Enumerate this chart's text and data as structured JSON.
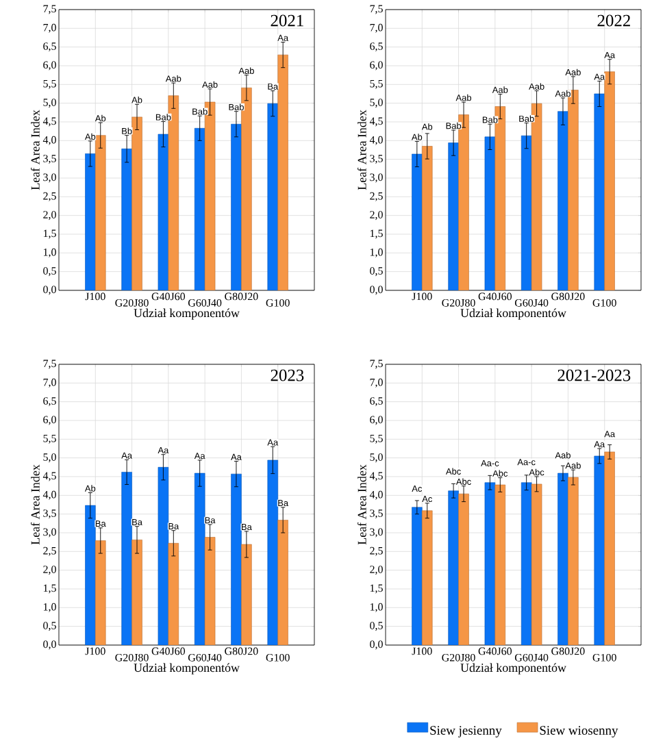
{
  "chart_data": [
    {
      "type": "bar",
      "title": "2021",
      "xlabel": "Udział komponentów",
      "ylabel": "Leaf Area Index",
      "categories": [
        "J100",
        "G20J80",
        "G40J60",
        "G60J40",
        "G80J20",
        "G100"
      ],
      "ylim": [
        0,
        7.5
      ],
      "yticks": [
        {
          "value": 0,
          "label": "0,0"
        },
        {
          "value": 0.5,
          "label": "0,5"
        },
        {
          "value": 1,
          "label": "1,0"
        },
        {
          "value": 1.5,
          "label": "1,5"
        },
        {
          "value": 2,
          "label": "2,0"
        },
        {
          "value": 2.5,
          "label": "2,5"
        },
        {
          "value": 3,
          "label": "3,0"
        },
        {
          "value": 3.5,
          "label": "3,5"
        },
        {
          "value": 4,
          "label": "4,0"
        },
        {
          "value": 4.5,
          "label": "4,5"
        },
        {
          "value": 5,
          "label": "5,0"
        },
        {
          "value": 5.5,
          "label": "5,5"
        },
        {
          "value": 6,
          "label": "6,0"
        },
        {
          "value": 6.5,
          "label": "6,5"
        },
        {
          "value": 7,
          "label": "7,0"
        },
        {
          "value": 7.5,
          "label": "7,5"
        }
      ],
      "grid": true,
      "series": [
        {
          "color": "#0a74f5",
          "values": [
            3.65,
            3.78,
            4.17,
            4.33,
            4.44,
            4.99
          ],
          "errors": [
            0.34,
            0.36,
            0.34,
            0.33,
            0.34,
            0.34
          ],
          "value_labels": [
            "Ab",
            "Bb",
            "Bab",
            "Bab",
            "Bab",
            "Ba"
          ]
        },
        {
          "color": "#f59646",
          "values": [
            4.14,
            4.63,
            5.2,
            5.03,
            5.41,
            6.29
          ],
          "errors": [
            0.34,
            0.34,
            0.34,
            0.35,
            0.34,
            0.34
          ],
          "value_labels": [
            "Ab",
            "Ab",
            "Aab",
            "Aab",
            "Aab",
            "Aa"
          ]
        }
      ]
    },
    {
      "type": "bar",
      "title": "2022",
      "xlabel": "Udział komponentów",
      "ylabel": "Leaf Area Index",
      "categories": [
        "J100",
        "G20J80",
        "G40J60",
        "G60J40",
        "G80J20",
        "G100"
      ],
      "ylim": [
        0,
        7.5
      ],
      "yticks": [
        {
          "value": 0,
          "label": "0,0"
        },
        {
          "value": 0.5,
          "label": "0,5"
        },
        {
          "value": 1,
          "label": "1,0"
        },
        {
          "value": 1.5,
          "label": "1,5"
        },
        {
          "value": 2,
          "label": "2,0"
        },
        {
          "value": 2.5,
          "label": "2,5"
        },
        {
          "value": 3,
          "label": "3,0"
        },
        {
          "value": 3.5,
          "label": "3,5"
        },
        {
          "value": 4,
          "label": "4,0"
        },
        {
          "value": 4.5,
          "label": "4,5"
        },
        {
          "value": 5,
          "label": "5,0"
        },
        {
          "value": 5.5,
          "label": "5,5"
        },
        {
          "value": 6,
          "label": "6,0"
        },
        {
          "value": 6.5,
          "label": "6,5"
        },
        {
          "value": 7,
          "label": "7,0"
        },
        {
          "value": 7.5,
          "label": "7,5"
        }
      ],
      "grid": true,
      "series": [
        {
          "color": "#0a74f5",
          "values": [
            3.64,
            3.94,
            4.1,
            4.13,
            4.78,
            5.25
          ],
          "errors": [
            0.34,
            0.34,
            0.34,
            0.34,
            0.36,
            0.34
          ],
          "value_labels": [
            "Ab",
            "Bab",
            "Bab",
            "Bab",
            "Aab",
            "Aa"
          ]
        },
        {
          "color": "#f59646",
          "values": [
            3.85,
            4.69,
            4.91,
            4.99,
            5.35,
            5.84
          ],
          "errors": [
            0.34,
            0.34,
            0.33,
            0.34,
            0.36,
            0.33
          ],
          "value_labels": [
            "Ab",
            "Aab",
            "Aab",
            "Aab",
            "Aab",
            "Aa"
          ]
        }
      ]
    },
    {
      "type": "bar",
      "title": "2023",
      "xlabel": "Udział komponentów",
      "ylabel": "Leaf Area Index",
      "categories": [
        "J100",
        "G20J80",
        "G40J60",
        "G60J40",
        "G80J20",
        "G100"
      ],
      "ylim": [
        0,
        7.5
      ],
      "yticks": [
        {
          "value": 0,
          "label": "0,0"
        },
        {
          "value": 0.5,
          "label": "0,5"
        },
        {
          "value": 1,
          "label": "1,0"
        },
        {
          "value": 1.5,
          "label": "1,5"
        },
        {
          "value": 2,
          "label": "2,0"
        },
        {
          "value": 2.5,
          "label": "2,5"
        },
        {
          "value": 3,
          "label": "3,0"
        },
        {
          "value": 3.5,
          "label": "3,5"
        },
        {
          "value": 4,
          "label": "4,0"
        },
        {
          "value": 4.5,
          "label": "4,5"
        },
        {
          "value": 5,
          "label": "5,0"
        },
        {
          "value": 5.5,
          "label": "5,5"
        },
        {
          "value": 6,
          "label": "6,0"
        },
        {
          "value": 6.5,
          "label": "6,5"
        },
        {
          "value": 7,
          "label": "7,0"
        },
        {
          "value": 7.5,
          "label": "7,5"
        }
      ],
      "grid": true,
      "series": [
        {
          "color": "#0a74f5",
          "values": [
            3.73,
            4.62,
            4.75,
            4.59,
            4.57,
            4.94
          ],
          "errors": [
            0.34,
            0.33,
            0.34,
            0.35,
            0.34,
            0.36
          ],
          "value_labels": [
            "Ab",
            "Aa",
            "Aa",
            "Aa",
            "Aa",
            "Aa"
          ]
        },
        {
          "color": "#f59646",
          "values": [
            2.79,
            2.81,
            2.72,
            2.88,
            2.69,
            3.34
          ],
          "errors": [
            0.34,
            0.36,
            0.34,
            0.34,
            0.35,
            0.34
          ],
          "value_labels": [
            "Ba",
            "Ba",
            "Ba",
            "Ba",
            "Ba",
            "Ba"
          ]
        }
      ]
    },
    {
      "type": "bar",
      "title": "2021-2023",
      "xlabel": "Udział komponentów",
      "ylabel": "Leaf Area Index",
      "categories": [
        "J100",
        "G20J80",
        "G40J60",
        "G60J40",
        "G80J20",
        "G100"
      ],
      "ylim": [
        0,
        7.5
      ],
      "yticks": [
        {
          "value": 0,
          "label": "0,0"
        },
        {
          "value": 0.5,
          "label": "0,5"
        },
        {
          "value": 1,
          "label": "1,0"
        },
        {
          "value": 1.5,
          "label": "1,5"
        },
        {
          "value": 2,
          "label": "2,0"
        },
        {
          "value": 2.5,
          "label": "2,5"
        },
        {
          "value": 3,
          "label": "3,0"
        },
        {
          "value": 3.5,
          "label": "3,5"
        },
        {
          "value": 4,
          "label": "4,0"
        },
        {
          "value": 4.5,
          "label": "4,5"
        },
        {
          "value": 5,
          "label": "5,0"
        },
        {
          "value": 5.5,
          "label": "5,5"
        },
        {
          "value": 6,
          "label": "6,0"
        },
        {
          "value": 6.5,
          "label": "6,5"
        },
        {
          "value": 7,
          "label": "7,0"
        },
        {
          "value": 7.5,
          "label": "7,5"
        }
      ],
      "grid": true,
      "legend": "bottom",
      "series": [
        {
          "name": "Siew jesienny",
          "color": "#0a74f5",
          "values": [
            3.68,
            4.12,
            4.34,
            4.34,
            4.59,
            5.05
          ],
          "errors": [
            0.18,
            0.19,
            0.19,
            0.2,
            0.2,
            0.2
          ],
          "value_labels": [
            "Ac",
            "Abc",
            "Aa-c",
            "Aa-c",
            "Aab",
            "Aa"
          ]
        },
        {
          "name": "Siew wiosenny",
          "color": "#f59646",
          "values": [
            3.59,
            4.04,
            4.28,
            4.3,
            4.48,
            5.16
          ],
          "errors": [
            0.2,
            0.21,
            0.19,
            0.2,
            0.2,
            0.19
          ],
          "value_labels": [
            "Ac",
            "Abc",
            "Abc",
            "Abc",
            "Aab",
            "Aa"
          ]
        }
      ]
    }
  ]
}
